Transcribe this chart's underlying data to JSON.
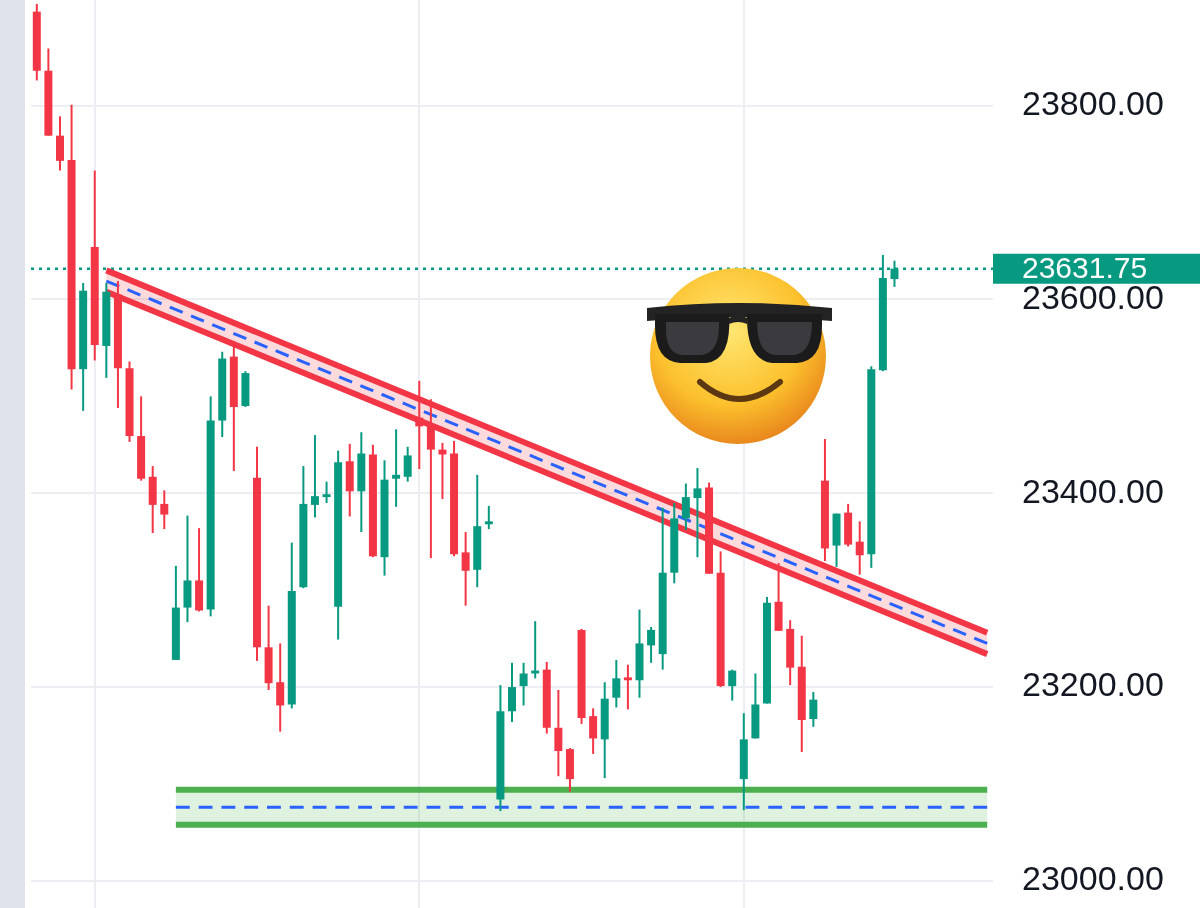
{
  "chart_data": {
    "type": "candlestick",
    "categories": [
      null,
      null,
      null,
      null,
      null,
      null,
      null,
      null,
      null,
      null,
      null,
      null,
      null,
      null,
      null,
      null,
      null,
      null,
      null,
      null,
      null,
      null,
      null,
      null,
      null,
      null,
      null,
      null,
      null,
      null,
      null,
      null,
      null,
      null,
      null,
      null,
      null,
      null,
      null,
      null,
      null,
      null,
      null,
      null,
      null,
      null,
      null,
      null,
      null,
      null,
      null,
      null,
      null,
      null,
      null,
      null,
      null,
      null,
      null,
      null,
      null,
      null,
      null,
      null,
      null,
      null,
      null,
      null,
      null,
      null,
      null,
      null,
      null,
      null,
      null,
      null,
      null,
      null,
      null,
      null,
      null,
      null,
      null
    ],
    "ohlc": [
      [
        23897,
        23905,
        23826,
        23836
      ],
      [
        23836,
        23859,
        23769,
        23769
      ],
      [
        23769,
        23789,
        23733,
        23743
      ],
      [
        23744,
        23801,
        23507,
        23528
      ],
      [
        23528,
        23617,
        23485,
        23609
      ],
      [
        23654,
        23733,
        23537,
        23553
      ],
      [
        23552,
        23617,
        23519,
        23608
      ],
      [
        23605,
        23619,
        23488,
        23529
      ],
      [
        23529,
        23536,
        23453,
        23459
      ],
      [
        23459,
        23500,
        23413,
        23415
      ],
      [
        23417,
        23428,
        23359,
        23388
      ],
      [
        23389,
        23403,
        23363,
        23378
      ],
      [
        23228,
        23325,
        23228,
        23282
      ],
      [
        23282,
        23377,
        23267,
        23310
      ],
      [
        23310,
        23364,
        23278,
        23279
      ],
      [
        23280,
        23500,
        23273,
        23475
      ],
      [
        23475,
        23546,
        23458,
        23539
      ],
      [
        23541,
        23557,
        23423,
        23489
      ],
      [
        23490,
        23526,
        23489,
        23524
      ],
      [
        23416,
        23448,
        23227,
        23241
      ],
      [
        23241,
        23284,
        23197,
        23204
      ],
      [
        23205,
        23245,
        23154,
        23181
      ],
      [
        23182,
        23349,
        23178,
        23299
      ],
      [
        23303,
        23428,
        23302,
        23389
      ],
      [
        23388,
        23460,
        23375,
        23397
      ],
      [
        23396,
        23412,
        23390,
        23399
      ],
      [
        23283,
        23444,
        23249,
        23432
      ],
      [
        23433,
        23451,
        23376,
        23402
      ],
      [
        23402,
        23463,
        23360,
        23441
      ],
      [
        23440,
        23450,
        23334,
        23335
      ],
      [
        23334,
        23434,
        23315,
        23414
      ],
      [
        23415,
        23466,
        23386,
        23419
      ],
      [
        23417,
        23448,
        23412,
        23439
      ],
      [
        23478,
        23516,
        23425,
        23469
      ],
      [
        23469,
        23497,
        23333,
        23445
      ],
      [
        23445,
        23452,
        23394,
        23440
      ],
      [
        23441,
        23454,
        23335,
        23337
      ],
      [
        23339,
        23360,
        23284,
        23320
      ],
      [
        23321,
        23419,
        23303,
        23366
      ],
      [
        23368,
        23387,
        23363,
        23371
      ],
      [
        23084,
        23202,
        23072,
        23175
      ],
      [
        23175,
        23225,
        23164,
        23200
      ],
      [
        23201,
        23225,
        23181,
        23214
      ],
      [
        23214,
        23268,
        23209,
        23217
      ],
      [
        23218,
        23226,
        23152,
        23158
      ],
      [
        23158,
        23197,
        23108,
        23134
      ],
      [
        23136,
        23137,
        23092,
        23105
      ],
      [
        23259,
        23260,
        23162,
        23168
      ],
      [
        23170,
        23178,
        23131,
        23147
      ],
      [
        23146,
        23205,
        23106,
        23188
      ],
      [
        23189,
        23228,
        23179,
        23209
      ],
      [
        23210,
        23223,
        23177,
        23207
      ],
      [
        23207,
        23280,
        23189,
        23245
      ],
      [
        23243,
        23262,
        23225,
        23259
      ],
      [
        23234,
        23385,
        23218,
        23318
      ],
      [
        23318,
        23390,
        23307,
        23374
      ],
      [
        23374,
        23410,
        23362,
        23396
      ],
      [
        23395,
        23426,
        23334,
        23405
      ],
      [
        23406,
        23411,
        23317,
        23317
      ],
      [
        23318,
        23340,
        23200,
        23201
      ],
      [
        23201,
        23218,
        23186,
        23217
      ],
      [
        23105,
        23173,
        23073,
        23146
      ],
      [
        23147,
        23214,
        23147,
        23182
      ],
      [
        23183,
        23293,
        23183,
        23287
      ],
      [
        23288,
        23328,
        23258,
        23258
      ],
      [
        23260,
        23269,
        23202,
        23220
      ],
      [
        23221,
        23253,
        23133,
        23166
      ],
      [
        23167,
        23195,
        23159,
        23187
      ],
      [
        23413,
        23456,
        23330,
        23343
      ],
      [
        23346,
        23379,
        23324,
        23379
      ],
      [
        23380,
        23389,
        23345,
        23347
      ],
      [
        23350,
        23371,
        23316,
        23336
      ],
      [
        23337,
        23531,
        23323,
        23528
      ],
      [
        23527,
        23646,
        23526,
        23622
      ],
      [
        23621,
        23640,
        23613,
        23631.75
      ],
      null,
      null,
      null,
      null,
      null,
      null,
      null,
      null
    ],
    "colors": [
      "#f23645",
      "#f23645",
      "#f23645",
      "#f23645",
      "#089981",
      "#f23645",
      "#089981",
      "#f23645",
      "#f23645",
      "#f23645",
      "#f23645",
      "#f23645",
      "#089981",
      "#089981",
      "#f23645",
      "#089981",
      "#089981",
      "#f23645",
      "#089981",
      "#f23645",
      "#f23645",
      "#f23645",
      "#089981",
      "#089981",
      "#089981",
      "#089981",
      "#089981",
      "#f23645",
      "#089981",
      "#f23645",
      "#089981",
      "#089981",
      "#089981",
      "#f23645",
      "#f23645",
      "#f23645",
      "#f23645",
      "#f23645",
      "#089981",
      "#089981",
      "#089981",
      "#089981",
      "#089981",
      "#089981",
      "#f23645",
      "#f23645",
      "#f23645",
      "#f23645",
      "#f23645",
      "#089981",
      "#089981",
      "#f23645",
      "#089981",
      "#089981",
      "#089981",
      "#089981",
      "#089981",
      "#089981",
      "#f23645",
      "#f23645",
      "#089981",
      "#089981",
      "#089981",
      "#089981",
      "#f23645",
      "#f23645",
      "#f23645",
      "#089981",
      "#f23645",
      "#089981",
      "#f23645",
      "#f23645",
      "#089981",
      "#089981",
      "#089981",
      null,
      null,
      null,
      null,
      null,
      null,
      null,
      null
    ],
    "series": [
      {
        "type": "line",
        "color": "#f23645",
        "values": [
          null,
          null,
          null,
          null,
          null,
          null,
          23630,
          null,
          null,
          null,
          null,
          null,
          null,
          null,
          null,
          null,
          null,
          null,
          null,
          null,
          null,
          null,
          null,
          null,
          null,
          null,
          null,
          null,
          null,
          null,
          null,
          null,
          null,
          null,
          null,
          null,
          null,
          null,
          null,
          null,
          null,
          null,
          null,
          null,
          null,
          null,
          null,
          null,
          null,
          null,
          null,
          null,
          null,
          null,
          null,
          null,
          null,
          null,
          null,
          null,
          null,
          null,
          null,
          null,
          null,
          null,
          null,
          null,
          null,
          null,
          null,
          null,
          null,
          null,
          null,
          null,
          null,
          null,
          null,
          null,
          null,
          null,
          23256
        ],
        "lower": [
          null,
          null,
          null,
          null,
          null,
          null,
          23608,
          null,
          null,
          null,
          null,
          null,
          null,
          null,
          null,
          null,
          null,
          null,
          null,
          null,
          null,
          null,
          null,
          null,
          null,
          null,
          null,
          null,
          null,
          null,
          null,
          null,
          null,
          null,
          null,
          null,
          null,
          null,
          null,
          null,
          null,
          null,
          null,
          null,
          null,
          null,
          null,
          null,
          null,
          null,
          null,
          null,
          null,
          null,
          null,
          null,
          null,
          null,
          null,
          null,
          null,
          null,
          null,
          null,
          null,
          null,
          null,
          null,
          null,
          null,
          null,
          null,
          null,
          null,
          null,
          null,
          null,
          null,
          null,
          null,
          null,
          null,
          23234
        ],
        "upper": [
          null,
          null,
          null,
          null,
          null,
          null,
          23630,
          null,
          null,
          null,
          null,
          null,
          null,
          null,
          null,
          null,
          null,
          null,
          null,
          null,
          null,
          null,
          null,
          null,
          null,
          null,
          null,
          null,
          null,
          null,
          null,
          null,
          null,
          null,
          null,
          null,
          null,
          null,
          null,
          null,
          null,
          null,
          null,
          null,
          null,
          null,
          null,
          null,
          null,
          null,
          null,
          null,
          null,
          null,
          null,
          null,
          null,
          null,
          null,
          null,
          null,
          null,
          null,
          null,
          null,
          null,
          null,
          null,
          null,
          null,
          null,
          null,
          null,
          null,
          null,
          null,
          null,
          null,
          null,
          null,
          null,
          null,
          23256
        ]
      },
      {
        "type": "line",
        "color": "#f23645",
        "values": [
          null,
          null,
          null,
          null,
          null,
          null,
          23608,
          null,
          null,
          null,
          null,
          null,
          null,
          null,
          null,
          null,
          null,
          null,
          null,
          null,
          null,
          null,
          null,
          null,
          null,
          null,
          null,
          null,
          null,
          null,
          null,
          null,
          null,
          null,
          null,
          null,
          null,
          null,
          null,
          null,
          null,
          null,
          null,
          null,
          null,
          null,
          null,
          null,
          null,
          null,
          null,
          null,
          null,
          null,
          null,
          null,
          null,
          null,
          null,
          null,
          null,
          null,
          null,
          null,
          null,
          null,
          null,
          null,
          null,
          null,
          null,
          null,
          null,
          null,
          null,
          null,
          null,
          null,
          null,
          null,
          null,
          null,
          23234
        ]
      },
      {
        "type": "line",
        "color": "#2962ff",
        "line_style": "dashed",
        "values": [
          null,
          null,
          null,
          null,
          null,
          null,
          23619,
          null,
          null,
          null,
          null,
          null,
          null,
          null,
          null,
          null,
          null,
          null,
          null,
          null,
          null,
          null,
          null,
          null,
          null,
          null,
          null,
          null,
          null,
          null,
          null,
          null,
          null,
          null,
          null,
          null,
          null,
          null,
          null,
          null,
          null,
          null,
          null,
          null,
          null,
          null,
          null,
          null,
          null,
          null,
          null,
          null,
          null,
          null,
          null,
          null,
          null,
          null,
          null,
          null,
          null,
          null,
          null,
          null,
          null,
          null,
          null,
          null,
          null,
          null,
          null,
          null,
          null,
          null,
          null,
          null,
          null,
          null,
          null,
          null,
          null,
          null,
          23245
        ]
      },
      {
        "type": "line",
        "color": "#4caf50",
        "values": [
          null,
          null,
          null,
          null,
          null,
          null,
          null,
          null,
          null,
          null,
          null,
          null,
          23094,
          null,
          null,
          null,
          null,
          null,
          null,
          null,
          null,
          null,
          null,
          null,
          null,
          null,
          null,
          null,
          null,
          null,
          null,
          null,
          null,
          null,
          null,
          null,
          null,
          null,
          null,
          null,
          null,
          null,
          null,
          null,
          null,
          null,
          null,
          null,
          null,
          null,
          null,
          null,
          null,
          null,
          null,
          null,
          null,
          null,
          null,
          null,
          null,
          null,
          null,
          null,
          null,
          null,
          null,
          null,
          null,
          null,
          null,
          null,
          null,
          null,
          null,
          null,
          null,
          null,
          null,
          null,
          null,
          null,
          23094
        ],
        "lower": [
          null,
          null,
          null,
          null,
          null,
          null,
          null,
          null,
          null,
          null,
          null,
          null,
          23058,
          null,
          null,
          null,
          null,
          null,
          null,
          null,
          null,
          null,
          null,
          null,
          null,
          null,
          null,
          null,
          null,
          null,
          null,
          null,
          null,
          null,
          null,
          null,
          null,
          null,
          null,
          null,
          null,
          null,
          null,
          null,
          null,
          null,
          null,
          null,
          null,
          null,
          null,
          null,
          null,
          null,
          null,
          null,
          null,
          null,
          null,
          null,
          null,
          null,
          null,
          null,
          null,
          null,
          null,
          null,
          null,
          null,
          null,
          null,
          null,
          null,
          null,
          null,
          null,
          null,
          null,
          null,
          null,
          null,
          23058
        ],
        "upper": [
          null,
          null,
          null,
          null,
          null,
          null,
          null,
          null,
          null,
          null,
          null,
          null,
          23094,
          null,
          null,
          null,
          null,
          null,
          null,
          null,
          null,
          null,
          null,
          null,
          null,
          null,
          null,
          null,
          null,
          null,
          null,
          null,
          null,
          null,
          null,
          null,
          null,
          null,
          null,
          null,
          null,
          null,
          null,
          null,
          null,
          null,
          null,
          null,
          null,
          null,
          null,
          null,
          null,
          null,
          null,
          null,
          null,
          null,
          null,
          null,
          null,
          null,
          null,
          null,
          null,
          null,
          null,
          null,
          null,
          null,
          null,
          null,
          null,
          null,
          null,
          null,
          null,
          null,
          null,
          null,
          null,
          null,
          23094
        ]
      },
      {
        "type": "line",
        "color": "#4caf50",
        "values": [
          null,
          null,
          null,
          null,
          null,
          null,
          null,
          null,
          null,
          null,
          null,
          null,
          23058,
          null,
          null,
          null,
          null,
          null,
          null,
          null,
          null,
          null,
          null,
          null,
          null,
          null,
          null,
          null,
          null,
          null,
          null,
          null,
          null,
          null,
          null,
          null,
          null,
          null,
          null,
          null,
          null,
          null,
          null,
          null,
          null,
          null,
          null,
          null,
          null,
          null,
          null,
          null,
          null,
          null,
          null,
          null,
          null,
          null,
          null,
          null,
          null,
          null,
          null,
          null,
          null,
          null,
          null,
          null,
          null,
          null,
          null,
          null,
          null,
          null,
          null,
          null,
          null,
          null,
          null,
          null,
          null,
          null,
          23058
        ]
      },
      {
        "type": "line",
        "color": "#2962ff",
        "line_style": "dashed",
        "values": [
          null,
          null,
          null,
          null,
          null,
          null,
          null,
          null,
          null,
          null,
          null,
          null,
          23076,
          null,
          null,
          null,
          null,
          null,
          null,
          null,
          null,
          null,
          null,
          null,
          null,
          null,
          null,
          null,
          null,
          null,
          null,
          null,
          null,
          null,
          null,
          null,
          null,
          null,
          null,
          null,
          null,
          null,
          null,
          null,
          null,
          null,
          null,
          null,
          null,
          null,
          null,
          null,
          null,
          null,
          null,
          null,
          null,
          null,
          null,
          null,
          null,
          null,
          null,
          null,
          null,
          null,
          null,
          null,
          null,
          null,
          null,
          null,
          null,
          null,
          null,
          null,
          null,
          null,
          null,
          null,
          null,
          null,
          23076
        ]
      }
    ],
    "ref_lines": [
      {
        "axis": "y",
        "value": 23631.75,
        "label": "23631.75",
        "color": "#089981",
        "line_style": "dotted"
      }
    ],
    "ylim": [
      22972,
      23909
    ],
    "yticks": [
      {
        "value": 23000,
        "label": "23000.00"
      },
      {
        "value": 23200,
        "label": "23200.00"
      },
      {
        "value": 23400,
        "label": "23400.00"
      },
      {
        "value": 23600,
        "label": "23600.00"
      },
      {
        "value": 23800,
        "label": "23800.00"
      }
    ],
    "grid": true,
    "tick_labels": "y"
  }
}
